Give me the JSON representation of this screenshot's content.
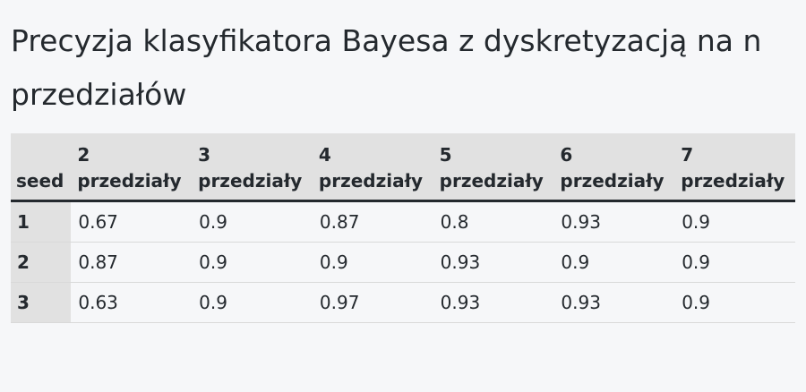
{
  "title": "Precyzja klasyfikatora Bayesa z dyskretyzacją na n przedziałów",
  "table": {
    "seed_header": "seed",
    "columns": [
      {
        "num": "2",
        "label": "przedziały"
      },
      {
        "num": "3",
        "label": "przedziały"
      },
      {
        "num": "4",
        "label": "przedziały"
      },
      {
        "num": "5",
        "label": "przedziały"
      },
      {
        "num": "6",
        "label": "przedziały"
      },
      {
        "num": "7",
        "label": "przedziały"
      }
    ],
    "rows": [
      {
        "seed": "1",
        "values": [
          "0.67",
          "0.9",
          "0.87",
          "0.8",
          "0.93",
          "0.9"
        ]
      },
      {
        "seed": "2",
        "values": [
          "0.87",
          "0.9",
          "0.9",
          "0.93",
          "0.9",
          "0.9"
        ]
      },
      {
        "seed": "3",
        "values": [
          "0.63",
          "0.9",
          "0.97",
          "0.93",
          "0.93",
          "0.9"
        ]
      }
    ]
  }
}
